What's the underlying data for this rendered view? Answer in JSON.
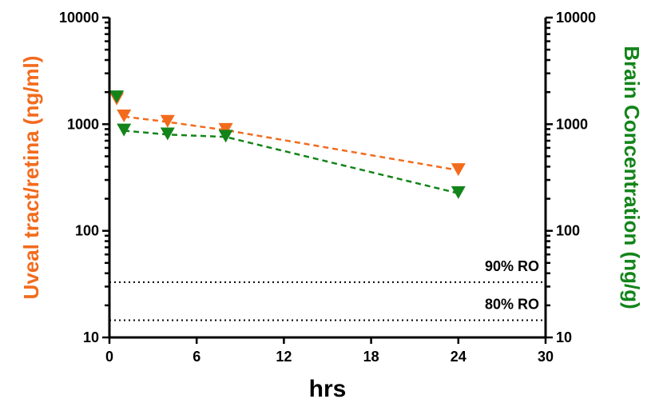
{
  "chart_data": {
    "type": "line",
    "xlabel": "hrs",
    "ylabel_left": "Uveal tract/retina (ng/ml)",
    "ylabel_right": "Brain Concentration (ng/g)",
    "xlim": [
      0,
      30
    ],
    "ylim": [
      10,
      10000
    ],
    "yscale": "log",
    "x_ticks": [
      0,
      6,
      12,
      18,
      24,
      30
    ],
    "y_ticks": [
      10,
      100,
      1000,
      10000
    ],
    "x_tick_labels": [
      "0",
      "6",
      "12",
      "18",
      "24",
      "30"
    ],
    "y_tick_labels_left": [
      "10",
      "100",
      "1000",
      "10000"
    ],
    "y_tick_labels_right": [
      "10",
      "100",
      "1000",
      "10000"
    ],
    "series": [
      {
        "name": "Uveal tract/retina",
        "color": "#f26b1d",
        "axis": "left",
        "marker": "down-triangle",
        "x": [
          0.5,
          1,
          4,
          8,
          24
        ],
        "y": [
          1700,
          1180,
          1050,
          880,
          370
        ]
      },
      {
        "name": "Brain Concentration",
        "color": "#13841a",
        "axis": "right",
        "marker": "down-triangle",
        "x": [
          0.5,
          1,
          4,
          8,
          24
        ],
        "y": [
          1780,
          870,
          800,
          760,
          225
        ]
      }
    ],
    "reference_lines": [
      {
        "label": "90% RO",
        "y": 33
      },
      {
        "label": "80% RO",
        "y": 14.5
      }
    ]
  }
}
